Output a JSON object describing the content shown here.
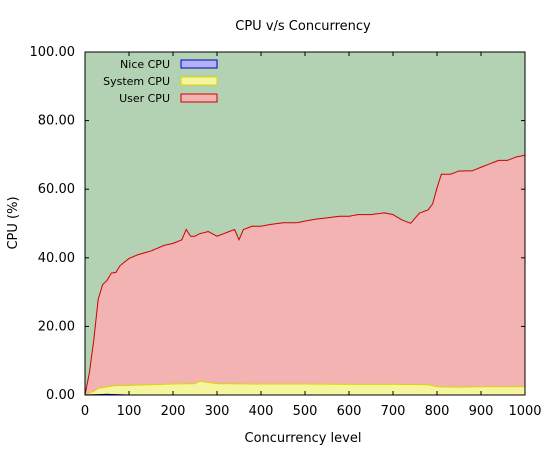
{
  "chart_data": {
    "type": "area",
    "title": "CPU v/s Concurrency",
    "xlabel": "Concurrency level",
    "ylabel": "CPU (%)",
    "xlim": [
      0,
      1000
    ],
    "ylim": [
      0,
      100
    ],
    "x_ticks": [
      "0",
      "100",
      "200",
      "300",
      "400",
      "500",
      "600",
      "700",
      "800",
      "900",
      "1000"
    ],
    "y_ticks": [
      "0.00",
      "20.00",
      "40.00",
      "60.00",
      "80.00",
      "100.00"
    ],
    "stacked": true,
    "legend_position": "top-left",
    "colors": {
      "background_idle": "#b3d1b3",
      "user_fill": "#f4b3b3",
      "user_line": "#cc0000",
      "system_fill": "#f5f5a0",
      "system_line": "#d8d800",
      "nice_fill": "#b3b3f4",
      "nice_line": "#0000cc"
    },
    "series": [
      {
        "name": "Nice CPU",
        "x": [
          0,
          50,
          100,
          200,
          300,
          400,
          500,
          600,
          700,
          800,
          900,
          1000
        ],
        "values": [
          0,
          0.2,
          0,
          0,
          0,
          0,
          0,
          0,
          0,
          0,
          0,
          0
        ]
      },
      {
        "name": "System CPU",
        "x": [
          0,
          10,
          20,
          30,
          50,
          70,
          100,
          150,
          200,
          250,
          260,
          300,
          400,
          500,
          600,
          700,
          780,
          800,
          850,
          900,
          950,
          1000
        ],
        "values": [
          0,
          0.5,
          1.0,
          1.8,
          2.2,
          2.6,
          2.8,
          3.0,
          3.2,
          3.3,
          4.0,
          3.3,
          3.2,
          3.2,
          3.1,
          3.1,
          3.0,
          2.4,
          2.3,
          2.4,
          2.4,
          2.4
        ]
      },
      {
        "name": "User CPU",
        "x": [
          0,
          10,
          20,
          30,
          40,
          50,
          60,
          70,
          80,
          90,
          100,
          120,
          150,
          180,
          200,
          220,
          230,
          240,
          260,
          280,
          300,
          320,
          340,
          350,
          360,
          380,
          400,
          420,
          450,
          480,
          500,
          520,
          550,
          580,
          600,
          620,
          650,
          680,
          700,
          720,
          740,
          760,
          780,
          790,
          800,
          810,
          830,
          850,
          870,
          880,
          900,
          920,
          940,
          960,
          980,
          1000
        ],
        "values": [
          0,
          6,
          15,
          26,
          30,
          31,
          33,
          33,
          35,
          36,
          37,
          38,
          39,
          40.5,
          41,
          42,
          45,
          43,
          43,
          44,
          43,
          44,
          45,
          42,
          45,
          46,
          46,
          46.5,
          47,
          47,
          47.5,
          48,
          48.5,
          49,
          49,
          49.5,
          49.5,
          50,
          49.5,
          48,
          47,
          50,
          51,
          53,
          58,
          62,
          62,
          63,
          63,
          63,
          64,
          65,
          66,
          66,
          67,
          67.5
        ]
      }
    ]
  }
}
